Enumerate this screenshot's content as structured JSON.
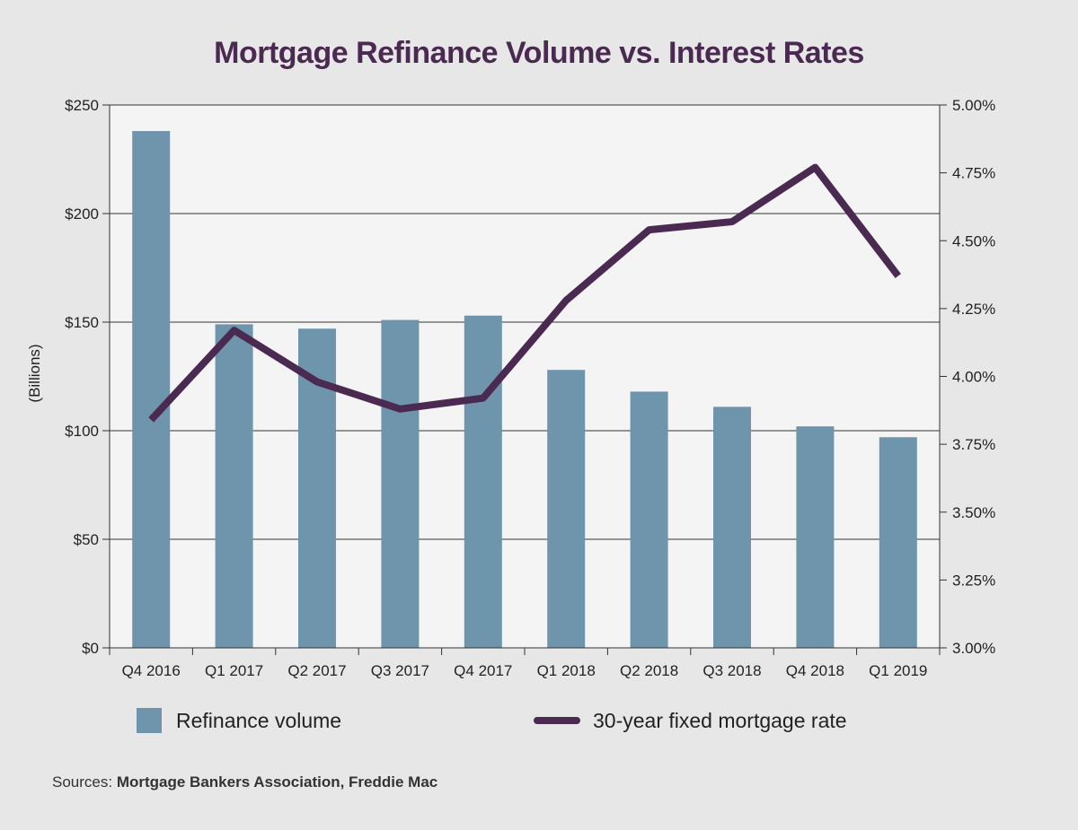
{
  "title": "Mortgage Refinance Volume vs. Interest Rates",
  "legend": {
    "bar_label": "Refinance volume",
    "line_label": "30-year fixed mortgage rate"
  },
  "source": {
    "prefix": "Sources:",
    "names": "Mortgage Bankers Association, Freddie Mac"
  },
  "colors": {
    "bar": "#6f95ad",
    "line": "#4b2a52",
    "plot_bg": "#f4f4f5",
    "page_bg": "#e7e7e8",
    "title": "#4b2a52"
  },
  "chart_data": {
    "type": "bar",
    "title": "Mortgage Refinance Volume vs. Interest Rates",
    "categories": [
      "Q4 2016",
      "Q1 2017",
      "Q2 2017",
      "Q3 2017",
      "Q4 2017",
      "Q1 2018",
      "Q2 2018",
      "Q3 2018",
      "Q4 2018",
      "Q1 2019"
    ],
    "series": [
      {
        "name": "Refinance volume",
        "type": "bar",
        "axis": "left",
        "values": [
          238,
          149,
          147,
          151,
          153,
          128,
          118,
          111,
          102,
          97
        ]
      },
      {
        "name": "30-year fixed mortgage rate",
        "type": "line",
        "axis": "right",
        "values": [
          3.84,
          4.17,
          3.98,
          3.88,
          3.92,
          4.28,
          4.54,
          4.57,
          4.77,
          4.37
        ]
      }
    ],
    "ylabel": "(Billions)",
    "ylim": [
      0,
      250
    ],
    "y_ticks": [
      0,
      50,
      100,
      150,
      200,
      250
    ],
    "y_tick_labels": [
      "$0",
      "$50",
      "$100",
      "$150",
      "$200",
      "$250"
    ],
    "y2lim": [
      3.0,
      5.0
    ],
    "y2_ticks": [
      3.0,
      3.25,
      3.5,
      3.75,
      4.0,
      4.25,
      4.5,
      4.75,
      5.0
    ],
    "y2_tick_labels": [
      "3.00%",
      "3.25%",
      "3.50%",
      "3.75%",
      "4.00%",
      "4.25%",
      "4.50%",
      "4.75%",
      "5.00%"
    ],
    "grid": "horizontal",
    "legend_position": "bottom"
  }
}
